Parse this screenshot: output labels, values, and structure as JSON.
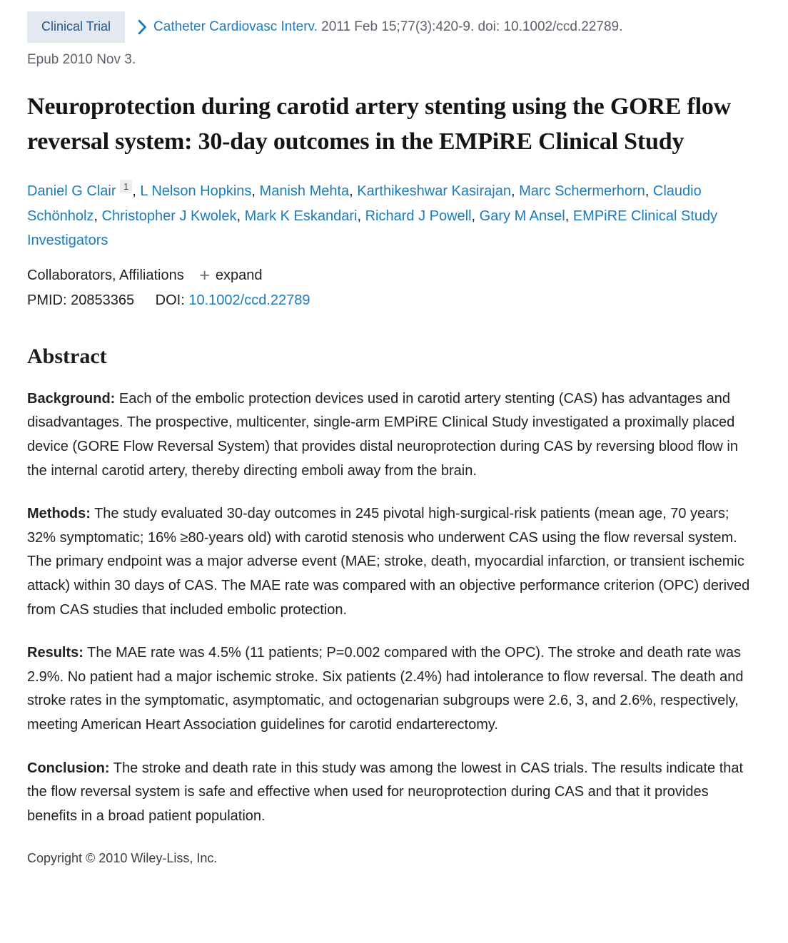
{
  "header": {
    "badge_label": "Clinical Trial",
    "journal_link": "Catheter Cardiovasc Interv.",
    "citation_tail": "2011 Feb 15;77(3):420-9. doi: 10.1002/ccd.22789.",
    "epub_text": "Epub 2010 Nov 3."
  },
  "title": "Neuroprotection during carotid artery stenting using the GORE flow reversal system: 30-day outcomes in the EMPiRE Clinical Study",
  "authors": [
    {
      "name": "Daniel G Clair",
      "sup": "1"
    },
    {
      "name": "L Nelson Hopkins"
    },
    {
      "name": "Manish Mehta"
    },
    {
      "name": "Karthikeshwar Kasirajan"
    },
    {
      "name": "Marc Schermerhorn"
    },
    {
      "name": "Claudio Schönholz"
    },
    {
      "name": "Christopher J Kwolek"
    },
    {
      "name": "Mark K Eskandari"
    },
    {
      "name": "Richard J Powell"
    },
    {
      "name": "Gary M Ansel"
    },
    {
      "name": "EMPiRE Clinical Study Investigators"
    }
  ],
  "meta": {
    "collaborators_label": "Collaborators, Affiliations",
    "expand_label": "expand",
    "pmid_label": "PMID:",
    "pmid_value": "20853365",
    "doi_label": "DOI:",
    "doi_link": "10.1002/ccd.22789"
  },
  "icons": {
    "chevron_right": "›",
    "plus": "+"
  },
  "abstract": {
    "heading": "Abstract",
    "sections": [
      {
        "label": "Background:",
        "text": "Each of the embolic protection devices used in carotid artery stenting (CAS) has advantages and disadvantages. The prospective, multicenter, single-arm EMPiRE Clinical Study investigated a proximally placed device (GORE Flow Reversal System) that provides distal neuroprotection during CAS by reversing blood flow in the internal carotid artery, thereby directing emboli away from the brain."
      },
      {
        "label": "Methods:",
        "text": "The study evaluated 30-day outcomes in 245 pivotal high-surgical-risk patients (mean age, 70 years; 32% symptomatic; 16% ≥80-years old) with carotid stenosis who underwent CAS using the flow reversal system. The primary endpoint was a major adverse event (MAE; stroke, death, myocardial infarction, or transient ischemic attack) within 30 days of CAS. The MAE rate was compared with an objective performance criterion (OPC) derived from CAS studies that included embolic protection."
      },
      {
        "label": "Results:",
        "text": "The MAE rate was 4.5% (11 patients; P=0.002 compared with the OPC). The stroke and death rate was 2.9%. No patient had a major ischemic stroke. Six patients (2.4%) had intolerance to flow reversal. The death and stroke rates in the symptomatic, asymptomatic, and octogenarian subgroups were 2.6, 3, and 2.6%, respectively, meeting American Heart Association guidelines for carotid endarterectomy."
      },
      {
        "label": "Conclusion:",
        "text": "The stroke and death rate in this study was among the lowest in CAS trials. The results indicate that the flow reversal system is safe and effective when used for neuroprotection during CAS and that it provides benefits in a broad patient population."
      }
    ]
  },
  "footer": {
    "copyright": "Copyright © 2010 Wiley-Liss, Inc."
  },
  "colors": {
    "link_blue": "#1a7cbc",
    "badge_bg": "#e4e8f1",
    "badge_text": "#20558c",
    "citation_gray": "#5b616b",
    "body_text": "#212121"
  }
}
